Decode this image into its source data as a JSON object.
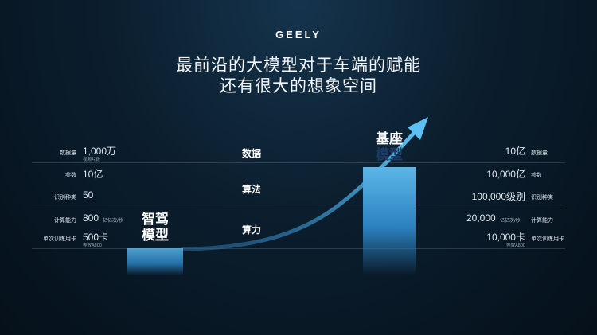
{
  "brand": "GEELY",
  "title_line1": "最前沿的大模型对于车端的赋能",
  "title_line2": "还有很大的想象空间",
  "categories": {
    "data": "数据",
    "algorithm": "算法",
    "compute": "算力"
  },
  "left_model": {
    "line1": "智驾",
    "line2": "模型"
  },
  "right_model": {
    "line1": "基座",
    "line2": "模型"
  },
  "left_rows": {
    "data_volume": {
      "label": "数据量",
      "value": "1,000万",
      "sub": "视频片段"
    },
    "params": {
      "label": "参数",
      "value": "10亿"
    },
    "recognition": {
      "label": "识别种类",
      "value": "50"
    },
    "compute_power": {
      "label": "计算能力",
      "value": "800",
      "unit": "亿亿次/秒"
    },
    "training_cards": {
      "label": "单次训练用卡",
      "value": "500卡",
      "sub": "等效A800"
    }
  },
  "right_rows": {
    "data_volume": {
      "label": "数据量",
      "value": "10亿"
    },
    "params": {
      "label": "参数",
      "value": "10,000亿"
    },
    "recognition": {
      "label": "识别种类",
      "value": "100,000级别"
    },
    "compute_power": {
      "label": "计算能力",
      "value": "20,000",
      "unit": "亿亿次/秒"
    },
    "training_cards": {
      "label": "单次训练用卡",
      "value": "10,000卡",
      "sub": "等效A800"
    }
  },
  "colors": {
    "accent": "#4fb0e6",
    "background": "#0b1e2e"
  }
}
